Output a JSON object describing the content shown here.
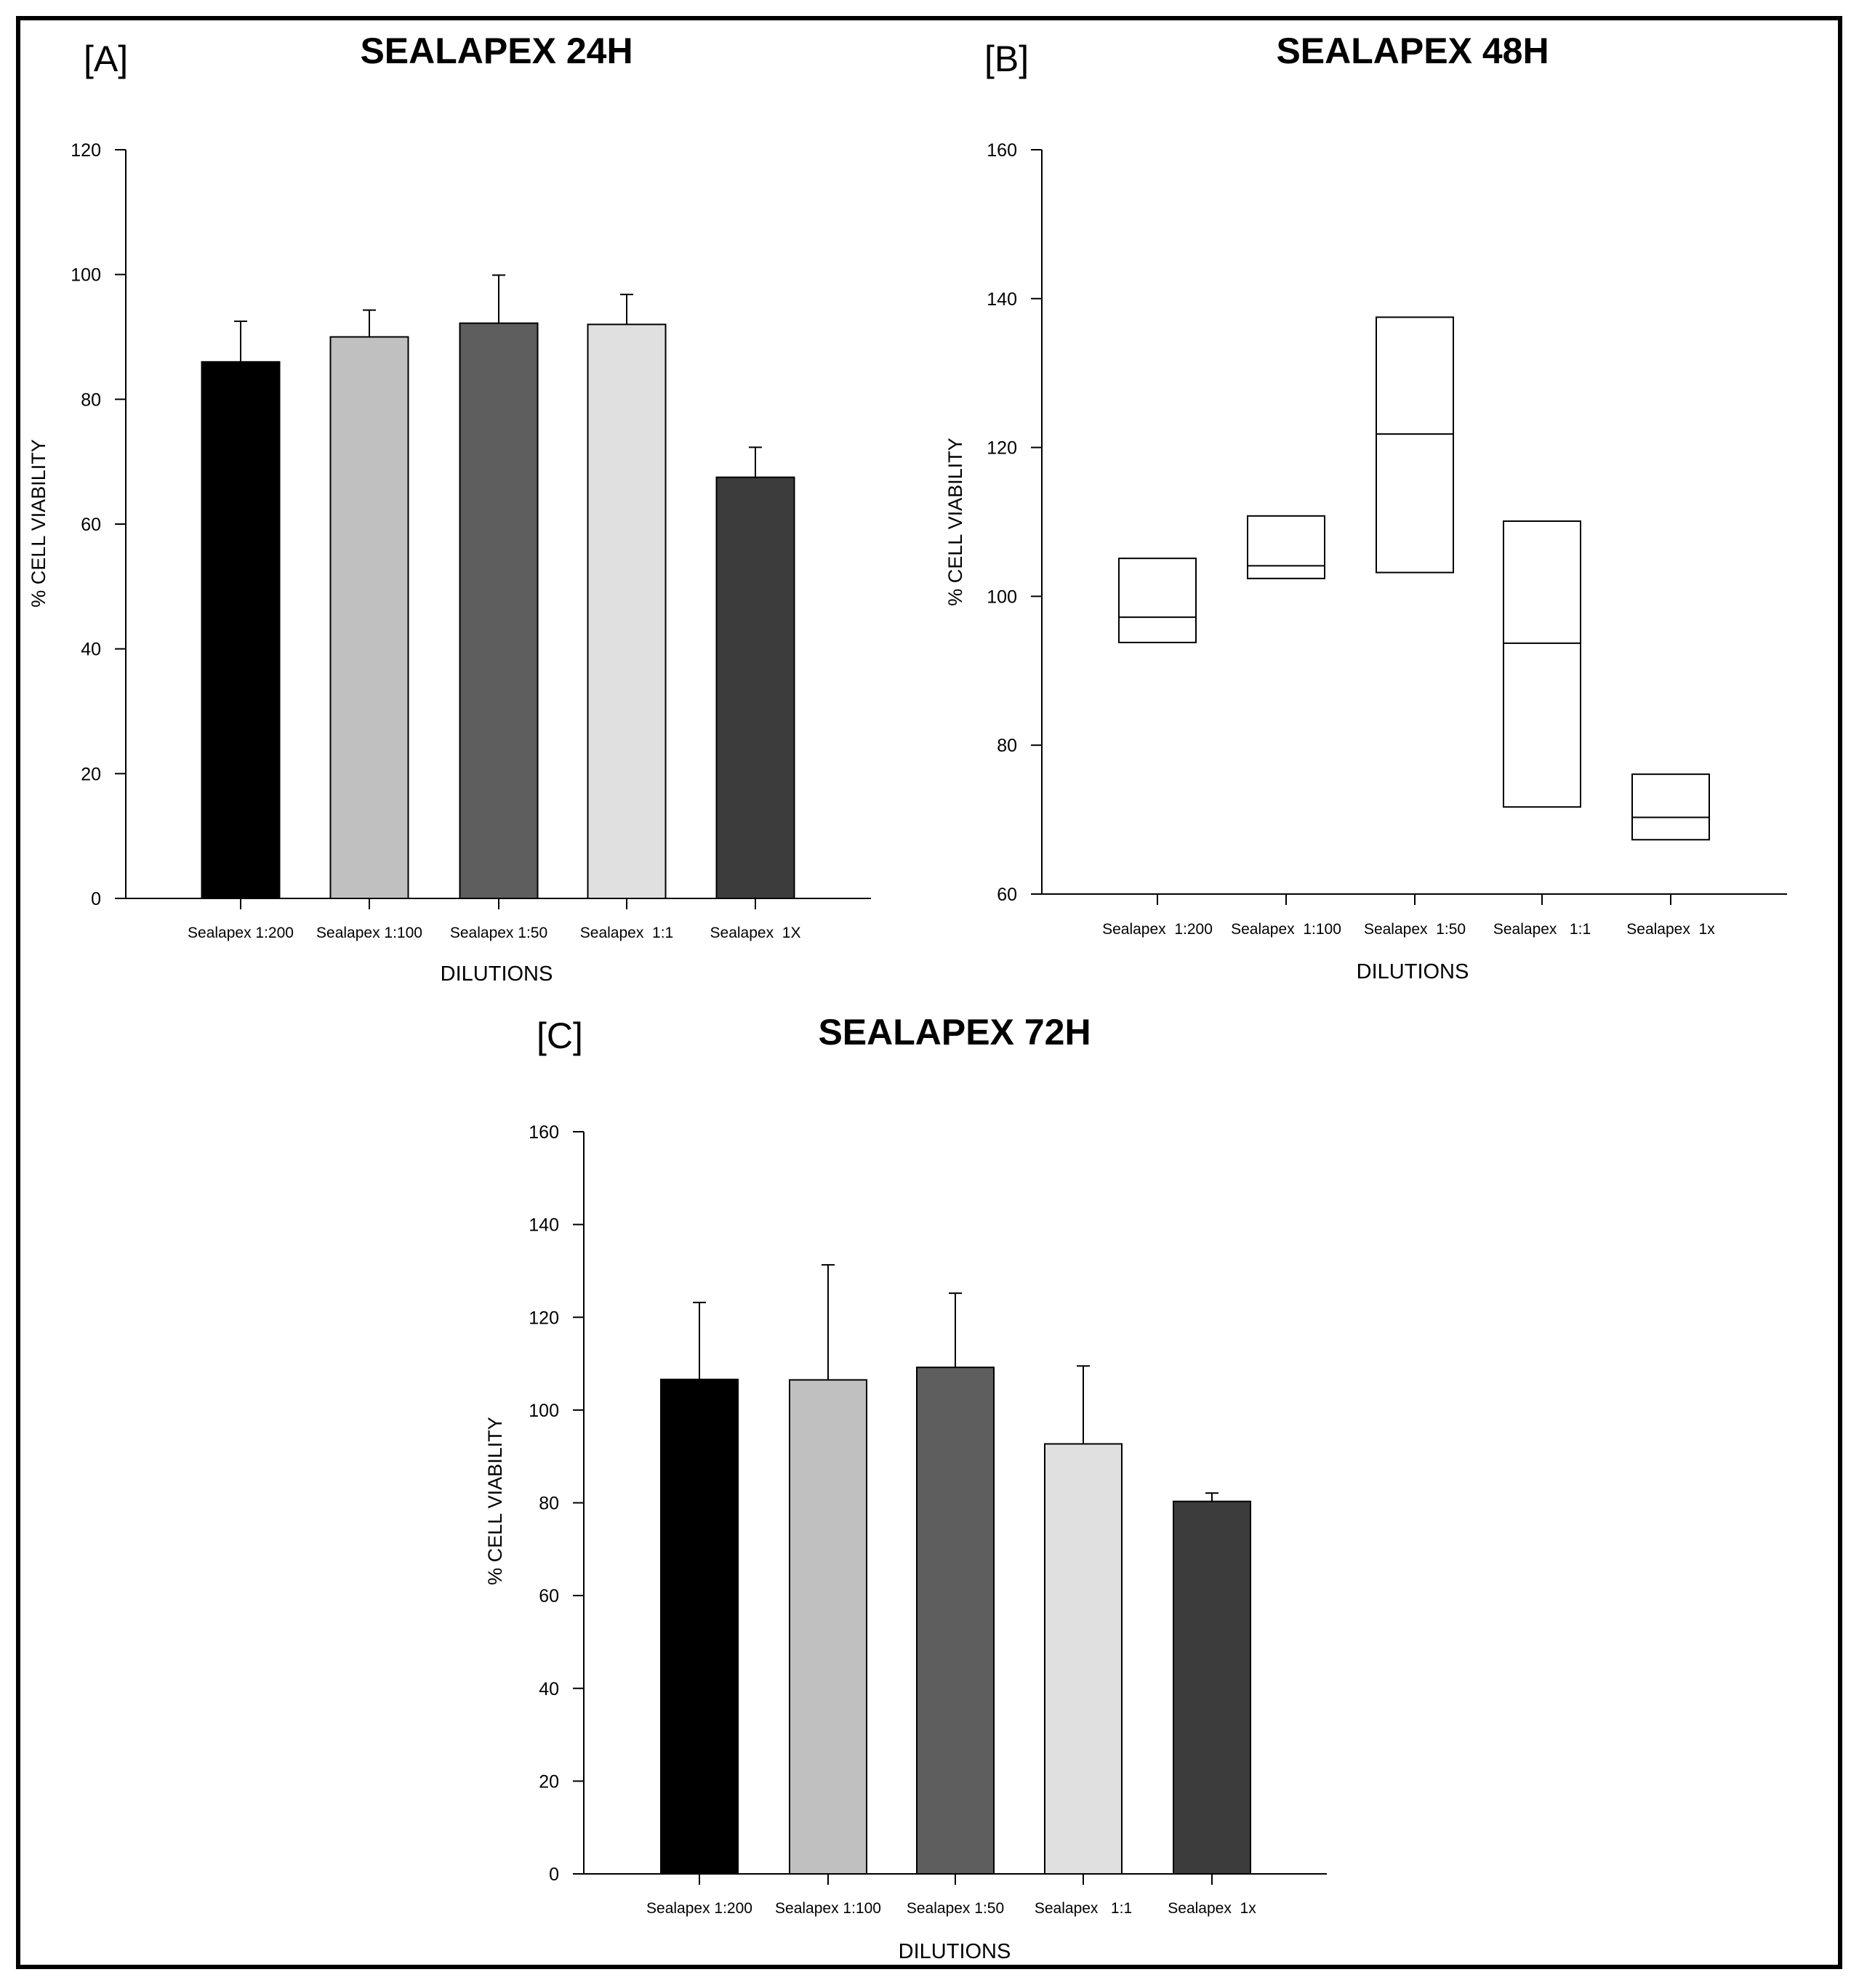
{
  "chart_data": [
    {
      "panel": "[A]",
      "type": "bar",
      "title": "SEALAPEX 24H",
      "xlabel": "DILUTIONS",
      "ylabel": "% CELL VIABILITY",
      "ylim": [
        0,
        120
      ],
      "yticks": [
        0,
        20,
        40,
        60,
        80,
        100,
        120
      ],
      "categories": [
        "Sealapex 1:200",
        "Sealapex 1:100",
        "Sealapex 1:50",
        "Sealapex  1:1",
        "Sealapex  1X"
      ],
      "values": [
        86,
        90,
        92.2,
        92,
        67.5
      ],
      "errors": [
        6.5,
        4.3,
        7.7,
        4.8,
        4.8
      ],
      "colors": [
        "#000000",
        "#c0c0c0",
        "#5e5e5e",
        "#e0e0e0",
        "#3c3c3c"
      ]
    },
    {
      "panel": "[B]",
      "type": "box",
      "title": "SEALAPEX 48H",
      "xlabel": "DILUTIONS",
      "ylabel": "% CELL VIABILITY",
      "ylim": [
        60,
        160
      ],
      "yticks": [
        60,
        80,
        100,
        120,
        140,
        160
      ],
      "categories": [
        "Sealapex  1:200",
        "Sealapex  1:100",
        "Sealapex  1:50",
        "Sealapex   1:1",
        "Sealapex  1x"
      ],
      "boxes": [
        {
          "q1": 93.8,
          "median": 97.2,
          "q3": 105.1
        },
        {
          "q1": 102.4,
          "median": 104.1,
          "q3": 110.8
        },
        {
          "q1": 103.2,
          "median": 121.8,
          "q3": 137.5
        },
        {
          "q1": 71.7,
          "median": 93.7,
          "q3": 110.1
        },
        {
          "q1": 67.3,
          "median": 70.3,
          "q3": 76.1
        }
      ]
    },
    {
      "panel": "[C]",
      "type": "bar",
      "title": "SEALAPEX 72H",
      "xlabel": "DILUTIONS",
      "ylabel": "% CELL VIABILITY",
      "ylim": [
        0,
        160
      ],
      "yticks": [
        0,
        20,
        40,
        60,
        80,
        100,
        120,
        140,
        160
      ],
      "categories": [
        "Sealapex 1:200",
        "Sealapex 1:100",
        "Sealapex 1:50",
        "Sealapex   1:1",
        "Sealapex  1x"
      ],
      "values": [
        106.6,
        106.5,
        109.2,
        92.7,
        80.3
      ],
      "errors": [
        16.6,
        24.8,
        16,
        16.8,
        1.8
      ],
      "colors": [
        "#000000",
        "#c0c0c0",
        "#5e5e5e",
        "#e0e0e0",
        "#3c3c3c"
      ]
    }
  ]
}
